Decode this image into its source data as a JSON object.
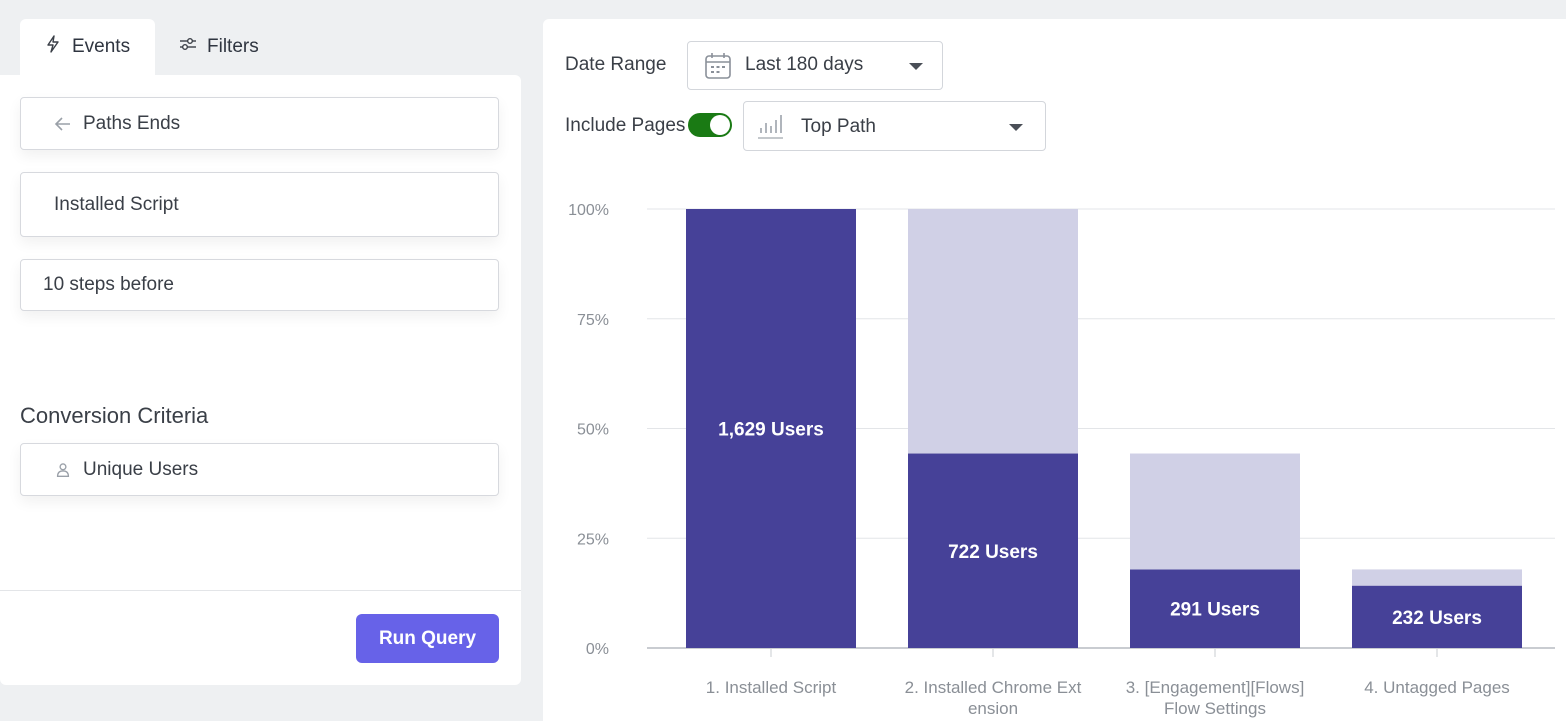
{
  "tabs": [
    {
      "label": "Events",
      "icon": "lightning-icon",
      "active": true
    },
    {
      "label": "Filters",
      "icon": "sliders-icon",
      "active": false
    }
  ],
  "left": {
    "paths_field": {
      "label": "Paths Ends",
      "icon": "arrow-left-icon"
    },
    "event_field": "Installed Script",
    "steps_field": "10 steps before",
    "conversion_title": "Conversion Criteria",
    "unique_users_field": {
      "label": "Unique Users",
      "icon": "user-icon"
    },
    "run_button": "Run Query"
  },
  "controls": {
    "date_range_label": "Date Range",
    "date_range_value": "Last 180 days",
    "include_pages_label": "Include Pages",
    "include_pages_on": true,
    "path_select_value": "Top Path"
  },
  "colors": {
    "primary_bar": "#464198",
    "secondary_bar": "#d0d0e6",
    "button": "#6762e8",
    "toggle_on": "#1a7a14"
  },
  "chart_data": {
    "type": "bar",
    "stacked": true,
    "categories": [
      "1. Installed Script",
      "2. Installed Chrome Ext ension",
      "3. [Engagement][Flows] Flow Settings",
      "4. Untagged Pages"
    ],
    "category_lines": [
      [
        "1. Installed Script"
      ],
      [
        "2. Installed Chrome Ext",
        "ension"
      ],
      [
        "3. [Engagement][Flows]",
        "Flow Settings"
      ],
      [
        "4. Untagged Pages"
      ]
    ],
    "series": [
      {
        "values": [
          100,
          44.3,
          17.9,
          14.2
        ],
        "color": "#464198"
      },
      {
        "values": [
          0,
          55.7,
          26.4,
          3.7
        ],
        "color": "#d0d0e6"
      }
    ],
    "data_labels": [
      "1,629 Users",
      "722 Users",
      "291 Users",
      "232 Users"
    ],
    "ylim": [
      0,
      100
    ],
    "yticks": [
      "0%",
      "25%",
      "50%",
      "75%",
      "100%"
    ],
    "grid": true,
    "legend": "none"
  }
}
